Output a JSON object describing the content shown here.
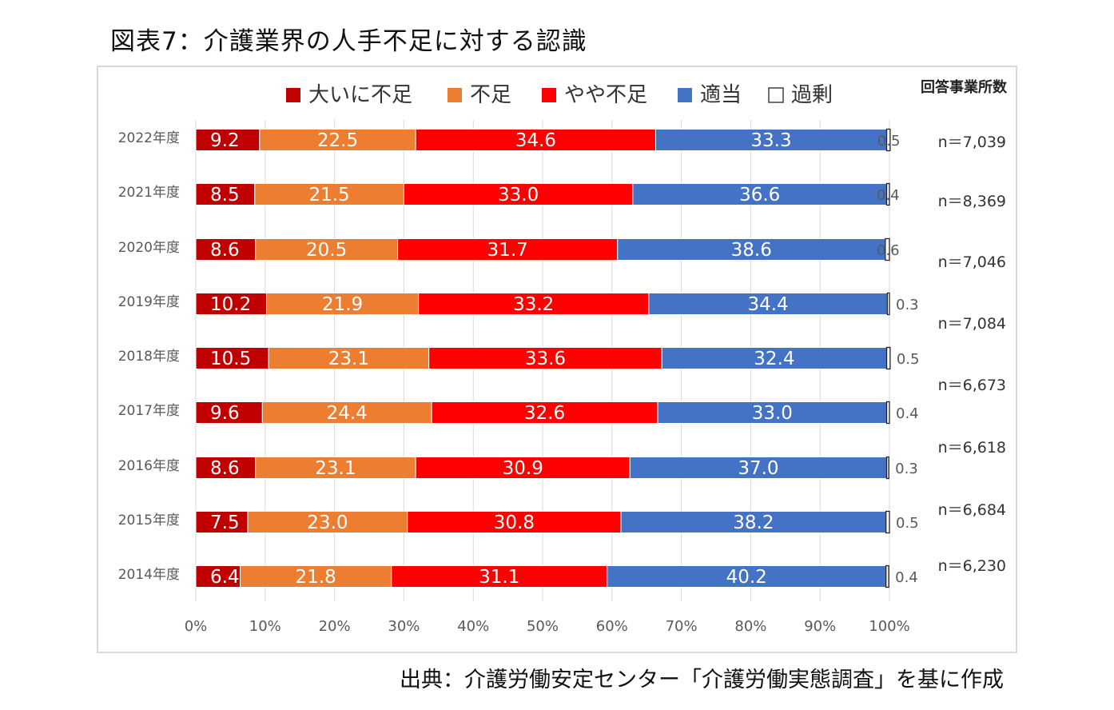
{
  "title": "図表7：介護業界の人手不足に対する認識",
  "source": "出典：介護労働安定センター「介護労働実態調査」を基に作成",
  "colors": {
    "大いに不足": "#c00000",
    "不足": "#ed7d31",
    "やや不足": "#ff0000",
    "適当": "#4472c4",
    "過剰": "#ffffff"
  },
  "chart_data": {
    "type": "bar",
    "orientation": "horizontal-stacked-100",
    "title": "図表7：介護業界の人手不足に対する認識",
    "legend": [
      "大いに不足",
      "不足",
      "やや不足",
      "適当",
      "過剰"
    ],
    "legend_position": "top",
    "n_header": "回答事業所数",
    "xlim": [
      0,
      100
    ],
    "x_ticks": [
      "0%",
      "10%",
      "20%",
      "30%",
      "40%",
      "50%",
      "60%",
      "70%",
      "80%",
      "90%",
      "100%"
    ],
    "categories": [
      "2022年度",
      "2021年度",
      "2020年度",
      "2019年度",
      "2018年度",
      "2017年度",
      "2016年度",
      "2015年度",
      "2014年度"
    ],
    "n_labels": [
      "n＝7,039",
      "n＝8,369",
      "n＝7,046",
      "n＝7,084",
      "n＝6,673",
      "n＝6,618",
      "n＝6,684",
      "n＝6,230",
      ""
    ],
    "series": [
      {
        "name": "大いに不足",
        "values": [
          9.2,
          8.5,
          8.6,
          10.2,
          10.5,
          9.6,
          8.6,
          7.5,
          6.4
        ]
      },
      {
        "name": "不足",
        "values": [
          22.5,
          21.5,
          20.5,
          21.9,
          23.1,
          24.4,
          23.1,
          23.0,
          21.8
        ]
      },
      {
        "name": "やや不足",
        "values": [
          34.6,
          33.0,
          31.7,
          33.2,
          33.6,
          32.6,
          30.9,
          30.8,
          31.1
        ]
      },
      {
        "name": "適当",
        "values": [
          33.3,
          36.6,
          38.6,
          34.4,
          32.4,
          33.0,
          37.0,
          38.2,
          40.2
        ]
      },
      {
        "name": "過剰",
        "values": [
          0.5,
          0.4,
          0.6,
          0.3,
          0.5,
          0.4,
          0.3,
          0.5,
          0.4
        ]
      }
    ],
    "label_texts": [
      [
        "9.2",
        "22.5",
        "34.6",
        "33.3",
        "0.5"
      ],
      [
        "8.5",
        "21.5",
        "33.0",
        "36.6",
        "0.4"
      ],
      [
        "8.6",
        "20.5",
        "31.7",
        "38.6",
        "0.6"
      ],
      [
        "10.2",
        "21.9",
        "33.2",
        "34.4",
        "0.3"
      ],
      [
        "10.5",
        "23.1",
        "33.6",
        "32.4",
        "0.5"
      ],
      [
        "9.6",
        "24.4",
        "32.6",
        "33.0",
        "0.4"
      ],
      [
        "8.6",
        "23.1",
        "30.9",
        "37.0",
        "0.3"
      ],
      [
        "7.5",
        "23.0",
        "30.8",
        "38.2",
        "0.5"
      ],
      [
        "6.4",
        "21.8",
        "31.1",
        "40.2",
        "0.4"
      ]
    ],
    "grid": true
  }
}
